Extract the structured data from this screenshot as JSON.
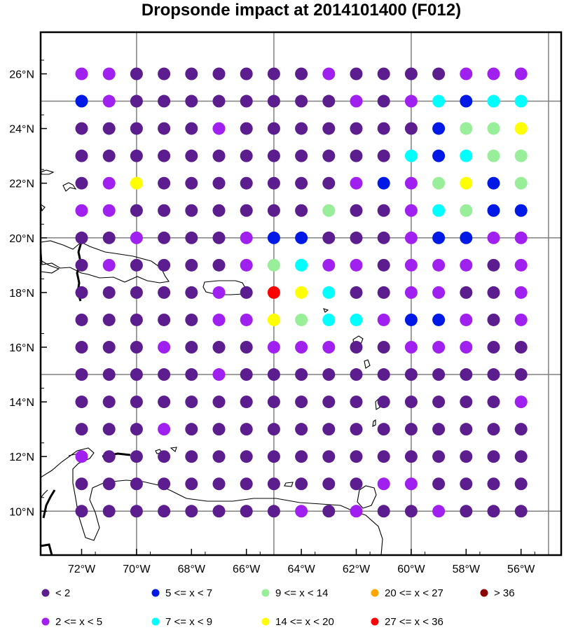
{
  "title": "Dropsonde impact at 2014101400 (F012)",
  "axes": {
    "lon_labels": [
      {
        "lon": -72,
        "label": "72°W"
      },
      {
        "lon": -70,
        "label": "70°W"
      },
      {
        "lon": -68,
        "label": "68°W"
      },
      {
        "lon": -66,
        "label": "66°W"
      },
      {
        "lon": -64,
        "label": "64°W"
      },
      {
        "lon": -62,
        "label": "62°W"
      },
      {
        "lon": -60,
        "label": "60°W"
      },
      {
        "lon": -58,
        "label": "58°W"
      },
      {
        "lon": -56,
        "label": "56°W"
      }
    ],
    "lat_labels": [
      {
        "lat": 26,
        "label": "26°N"
      },
      {
        "lat": 24,
        "label": "24°N"
      },
      {
        "lat": 22,
        "label": "22°N"
      },
      {
        "lat": 20,
        "label": "20°N"
      },
      {
        "lat": 18,
        "label": "18°N"
      },
      {
        "lat": 16,
        "label": "16°N"
      },
      {
        "lat": 14,
        "label": "14°N"
      },
      {
        "lat": 12,
        "label": "12°N"
      },
      {
        "lat": 10,
        "label": "10°N"
      }
    ],
    "gridlines_lon": [
      -70,
      -65,
      -60,
      -55
    ],
    "gridlines_lat": [
      25,
      20,
      15,
      10
    ]
  },
  "legend": [
    {
      "key": "c1",
      "label": "<  2",
      "color": "#5c1e8f"
    },
    {
      "key": "c2",
      "label": "2 <= x <  5",
      "color": "#a020f0"
    },
    {
      "key": "c3",
      "label": "5 <= x <  7",
      "color": "#0019e6"
    },
    {
      "key": "c4",
      "label": "7 <= x <  9",
      "color": "#00ffff"
    },
    {
      "key": "c5",
      "label": "9 <= x < 14",
      "color": "#99ee99"
    },
    {
      "key": "c6",
      "label": "14 <= x < 20",
      "color": "#ffff00"
    },
    {
      "key": "c7",
      "label": "20 <= x < 27",
      "color": "#ffa500"
    },
    {
      "key": "c8",
      "label": "27 <= x < 36",
      "color": "#ff0000"
    },
    {
      "key": "c9",
      "label": "> 36",
      "color": "#8b0000"
    }
  ],
  "map_data": {
    "lon_start": -72,
    "lon_step": 1,
    "lats": [
      26,
      25,
      24,
      23,
      22,
      21,
      20,
      19,
      18,
      17,
      16,
      15,
      14,
      13,
      12,
      11,
      10
    ],
    "class_grid": [
      [
        2,
        2,
        1,
        1,
        1,
        1,
        1,
        1,
        1,
        2,
        1,
        1,
        1,
        1,
        2,
        2,
        2
      ],
      [
        3,
        2,
        1,
        1,
        1,
        1,
        1,
        1,
        1,
        1,
        2,
        1,
        2,
        4,
        3,
        4,
        4
      ],
      [
        1,
        1,
        1,
        1,
        1,
        2,
        1,
        1,
        1,
        1,
        1,
        1,
        1,
        3,
        5,
        5,
        6
      ],
      [
        1,
        1,
        1,
        1,
        1,
        1,
        1,
        1,
        1,
        1,
        1,
        1,
        4,
        3,
        4,
        5,
        5
      ],
      [
        1,
        2,
        6,
        1,
        1,
        1,
        1,
        1,
        1,
        1,
        2,
        3,
        2,
        5,
        6,
        3,
        5
      ],
      [
        2,
        2,
        1,
        1,
        1,
        1,
        1,
        1,
        1,
        5,
        1,
        1,
        2,
        4,
        5,
        3,
        3
      ],
      [
        1,
        1,
        2,
        1,
        1,
        1,
        2,
        3,
        3,
        1,
        1,
        1,
        2,
        3,
        3,
        2,
        2
      ],
      [
        1,
        2,
        1,
        1,
        1,
        1,
        2,
        5,
        4,
        2,
        2,
        1,
        2,
        2,
        2,
        1,
        2
      ],
      [
        1,
        1,
        1,
        1,
        1,
        2,
        1,
        8,
        6,
        4,
        1,
        1,
        2,
        2,
        1,
        1,
        2
      ],
      [
        1,
        1,
        1,
        1,
        1,
        2,
        2,
        6,
        5,
        4,
        4,
        2,
        3,
        3,
        2,
        1,
        2
      ],
      [
        1,
        1,
        1,
        2,
        1,
        1,
        1,
        2,
        2,
        2,
        1,
        1,
        2,
        2,
        2,
        1,
        1
      ],
      [
        1,
        1,
        1,
        1,
        1,
        2,
        1,
        1,
        1,
        1,
        1,
        1,
        1,
        1,
        1,
        1,
        1
      ],
      [
        1,
        1,
        1,
        1,
        1,
        1,
        1,
        1,
        1,
        1,
        1,
        1,
        1,
        1,
        1,
        1,
        2
      ],
      [
        1,
        1,
        1,
        2,
        1,
        1,
        1,
        1,
        1,
        1,
        1,
        1,
        1,
        1,
        1,
        1,
        1
      ],
      [
        2,
        1,
        1,
        1,
        1,
        1,
        1,
        1,
        1,
        1,
        1,
        1,
        1,
        1,
        1,
        1,
        1
      ],
      [
        1,
        1,
        1,
        1,
        1,
        1,
        1,
        1,
        1,
        1,
        1,
        2,
        2,
        1,
        1,
        1,
        1
      ],
      [
        1,
        1,
        1,
        1,
        1,
        1,
        1,
        1,
        2,
        1,
        2,
        1,
        1,
        2,
        1,
        1,
        1
      ]
    ]
  }
}
